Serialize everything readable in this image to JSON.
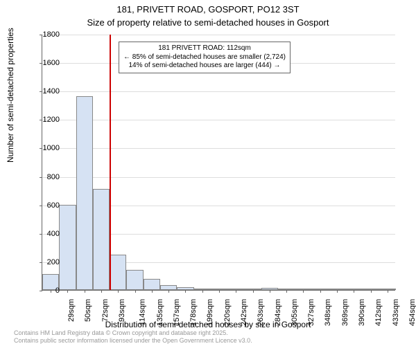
{
  "chart": {
    "type": "histogram",
    "title": "181, PRIVETT ROAD, GOSPORT, PO12 3ST",
    "subtitle": "Size of property relative to semi-detached houses in Gosport",
    "ylabel": "Number of semi-detached properties",
    "xlabel": "Distribution of semi-detached houses by size in Gosport",
    "background_color": "#ffffff",
    "bar_fill": "#d6e2f3",
    "bar_border": "#888888",
    "grid_color": "#dddddd",
    "axis_color": "#666666",
    "vline_color": "#cc0000",
    "title_fontsize": 13,
    "label_fontsize": 12,
    "tick_fontsize": 11,
    "annotation_fontsize": 10,
    "ylim": [
      0,
      1800
    ],
    "ytick_step": 200,
    "xticks": [
      "29sqm",
      "50sqm",
      "72sqm",
      "93sqm",
      "114sqm",
      "135sqm",
      "157sqm",
      "178sqm",
      "199sqm",
      "220sqm",
      "242sqm",
      "263sqm",
      "284sqm",
      "305sqm",
      "327sqm",
      "348sqm",
      "369sqm",
      "390sqm",
      "412sqm",
      "433sqm",
      "454sqm"
    ],
    "values": [
      110,
      600,
      1360,
      710,
      250,
      140,
      80,
      35,
      20,
      10,
      8,
      6,
      5,
      15,
      4,
      3,
      2,
      2,
      2,
      2,
      2
    ],
    "vline_x": 112,
    "xlim": [
      29,
      465
    ],
    "annotation": {
      "line1": "181 PRIVETT ROAD: 112sqm",
      "line2": "← 85% of semi-detached houses are smaller (2,724)",
      "line3": "14% of semi-detached houses are larger (444) →"
    },
    "footer": {
      "line1": "Contains HM Land Registry data © Crown copyright and database right 2025.",
      "line2": "Contains public sector information licensed under the Open Government Licence v3.0."
    }
  }
}
